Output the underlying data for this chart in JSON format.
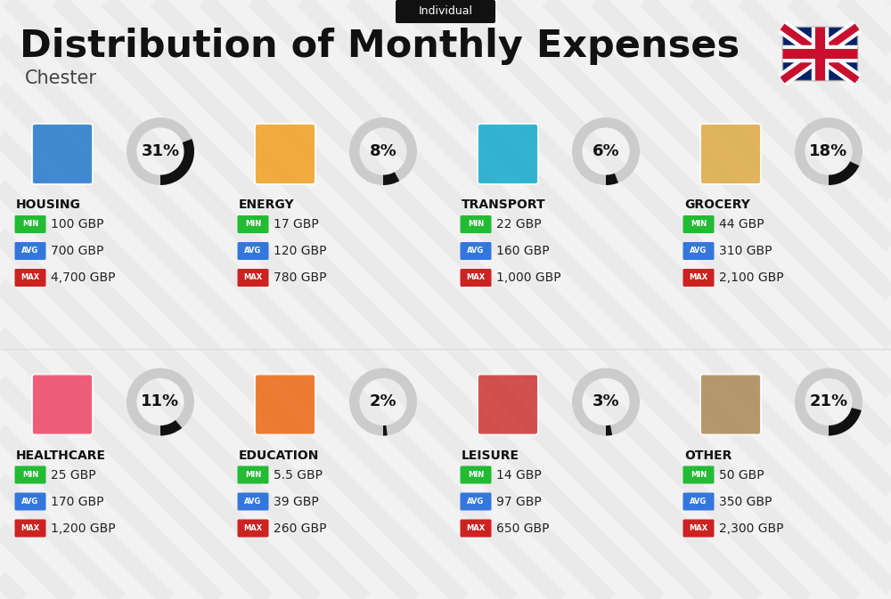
{
  "title": "Distribution of Monthly Expenses",
  "subtitle": "Chester",
  "badge": "Individual",
  "background_color": "#f2f2f2",
  "categories": [
    {
      "name": "HOUSING",
      "percent": 31,
      "min_val": "100 GBP",
      "avg_val": "700 GBP",
      "max_val": "4,700 GBP",
      "col": 0,
      "row": 0
    },
    {
      "name": "ENERGY",
      "percent": 8,
      "min_val": "17 GBP",
      "avg_val": "120 GBP",
      "max_val": "780 GBP",
      "col": 1,
      "row": 0
    },
    {
      "name": "TRANSPORT",
      "percent": 6,
      "min_val": "22 GBP",
      "avg_val": "160 GBP",
      "max_val": "1,000 GBP",
      "col": 2,
      "row": 0
    },
    {
      "name": "GROCERY",
      "percent": 18,
      "min_val": "44 GBP",
      "avg_val": "310 GBP",
      "max_val": "2,100 GBP",
      "col": 3,
      "row": 0
    },
    {
      "name": "HEALTHCARE",
      "percent": 11,
      "min_val": "25 GBP",
      "avg_val": "170 GBP",
      "max_val": "1,200 GBP",
      "col": 0,
      "row": 1
    },
    {
      "name": "EDUCATION",
      "percent": 2,
      "min_val": "5.5 GBP",
      "avg_val": "39 GBP",
      "max_val": "260 GBP",
      "col": 1,
      "row": 1
    },
    {
      "name": "LEISURE",
      "percent": 3,
      "min_val": "14 GBP",
      "avg_val": "97 GBP",
      "max_val": "650 GBP",
      "col": 2,
      "row": 1
    },
    {
      "name": "OTHER",
      "percent": 21,
      "min_val": "50 GBP",
      "avg_val": "350 GBP",
      "max_val": "2,300 GBP",
      "col": 3,
      "row": 1
    }
  ],
  "min_color": "#22bb33",
  "avg_color": "#3377dd",
  "max_color": "#cc2222",
  "circle_filled": "#111111",
  "circle_empty": "#cccccc",
  "title_color": "#111111",
  "subtitle_color": "#444444",
  "badge_bg": "#111111",
  "badge_fg": "#ffffff",
  "stripe_color": "#e6e6e6",
  "label_text_color": "#ffffff",
  "value_text_color": "#222222",
  "cat_name_color": "#111111"
}
